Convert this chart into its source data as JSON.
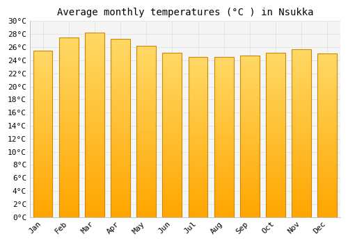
{
  "title": "Average monthly temperatures (°C ) in Nsukka",
  "months": [
    "Jan",
    "Feb",
    "Mar",
    "Apr",
    "May",
    "Jun",
    "Jul",
    "Aug",
    "Sep",
    "Oct",
    "Nov",
    "Dec"
  ],
  "temperatures": [
    25.5,
    27.5,
    28.2,
    27.3,
    26.2,
    25.2,
    24.5,
    24.5,
    24.7,
    25.2,
    25.7,
    25.1
  ],
  "bar_color_bottom": "#FFA500",
  "bar_color_top": "#FFD966",
  "bar_edge_color": "#CC8800",
  "ylim": [
    0,
    30
  ],
  "ytick_step": 2,
  "background_color": "#ffffff",
  "plot_bg_color": "#f5f5f5",
  "grid_color": "#dddddd",
  "title_fontsize": 10,
  "tick_fontsize": 8,
  "font_family": "monospace"
}
